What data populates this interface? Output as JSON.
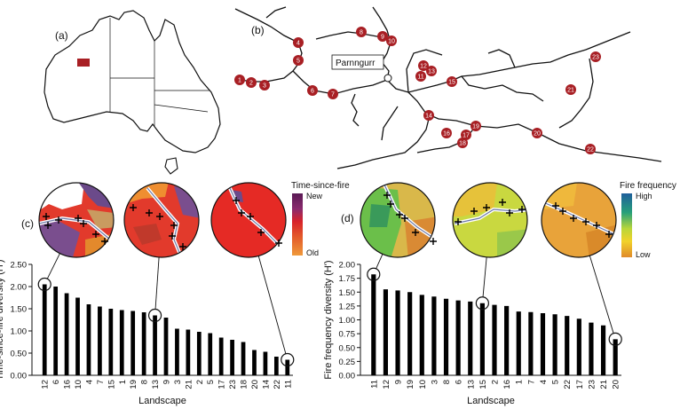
{
  "panels": {
    "a": "(a)",
    "b": "(b)",
    "c": "(c)",
    "d": "(d)"
  },
  "map": {
    "place_label": "Parnngurr",
    "site_numbers": [
      "1",
      "2",
      "3",
      "4",
      "5",
      "6",
      "7",
      "8",
      "9",
      "10",
      "11",
      "12",
      "13",
      "14",
      "15",
      "16",
      "17",
      "18",
      "19",
      "20",
      "21",
      "22",
      "23"
    ]
  },
  "legends": {
    "tsf": {
      "title": "Time-since-fire",
      "top": "New",
      "bottom": "Old"
    },
    "ff": {
      "title": "Fire frequency",
      "top": "High",
      "bottom": "Low"
    }
  },
  "colors": {
    "map_marker": "#a81f24",
    "bars": "#000000",
    "tsf_new": "#6b1e5c",
    "tsf_old": "#e8892a",
    "ff_high": "#1f5f9c",
    "ff_low": "#e08a2a"
  },
  "chart_data": [
    {
      "type": "bar",
      "panel": "c",
      "xlabel": "Landscape",
      "ylabel": "Time-since-fire diversity (H')",
      "ylim": [
        0,
        2.5
      ],
      "yticks": [
        "0.00",
        "0.50",
        "1.00",
        "1.50",
        "2.00",
        "2.50"
      ],
      "categories": [
        "12",
        "6",
        "16",
        "10",
        "4",
        "7",
        "15",
        "1",
        "19",
        "8",
        "13",
        "9",
        "3",
        "21",
        "2",
        "5",
        "17",
        "23",
        "18",
        "20",
        "14",
        "22",
        "11"
      ],
      "values": [
        2.05,
        2.0,
        1.85,
        1.75,
        1.6,
        1.55,
        1.5,
        1.47,
        1.45,
        1.42,
        1.35,
        1.3,
        1.05,
        1.03,
        0.98,
        0.95,
        0.85,
        0.8,
        0.75,
        0.57,
        0.53,
        0.42,
        0.35
      ],
      "highlighted": [
        "12",
        "13",
        "11"
      ]
    },
    {
      "type": "bar",
      "panel": "d",
      "xlabel": "Landscape",
      "ylabel": "Fire frequency diversity (H')",
      "ylim": [
        0,
        2.0
      ],
      "yticks": [
        "0.00",
        "0.25",
        "0.50",
        "0.75",
        "1.00",
        "1.25",
        "1.50",
        "1.75",
        "2.00"
      ],
      "categories": [
        "11",
        "12",
        "9",
        "19",
        "10",
        "3",
        "8",
        "6",
        "13",
        "15",
        "2",
        "16",
        "1",
        "7",
        "4",
        "5",
        "22",
        "17",
        "23",
        "21",
        "20"
      ],
      "values": [
        1.82,
        1.55,
        1.53,
        1.5,
        1.45,
        1.42,
        1.38,
        1.35,
        1.33,
        1.3,
        1.27,
        1.25,
        1.15,
        1.14,
        1.12,
        1.1,
        1.07,
        1.02,
        0.95,
        0.9,
        0.65
      ],
      "highlighted": [
        "11",
        "15",
        "20"
      ]
    }
  ]
}
